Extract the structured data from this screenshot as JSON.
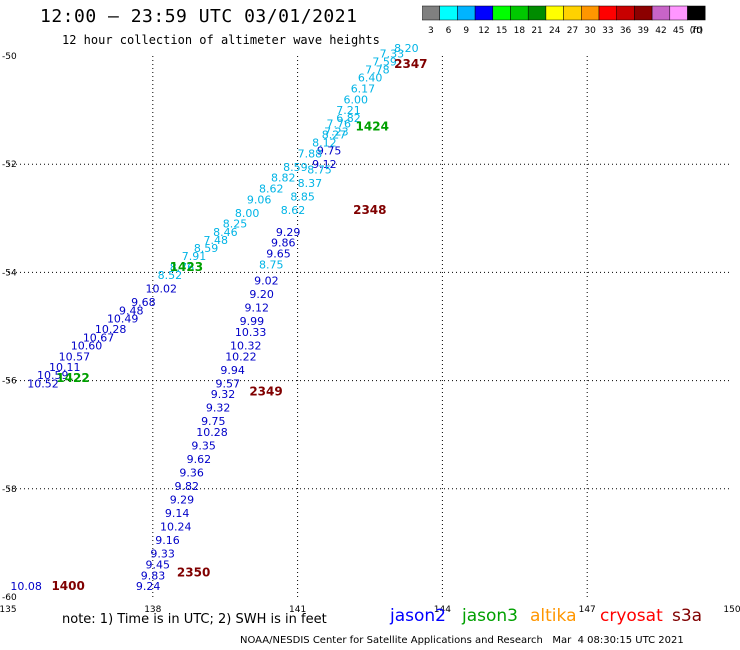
{
  "header": {
    "title": "12:00 — 23:59 UTC 03/01/2021",
    "subtitle": "12 hour collection of altimeter wave heights"
  },
  "legend": {
    "unit": "(ft)",
    "bins": [
      {
        "label": "3",
        "color": "#808080"
      },
      {
        "label": "6",
        "color": "#00ffff"
      },
      {
        "label": "9",
        "color": "#00b4ff"
      },
      {
        "label": "12",
        "color": "#0000ff"
      },
      {
        "label": "15",
        "color": "#00ff00"
      },
      {
        "label": "18",
        "color": "#00c800"
      },
      {
        "label": "21",
        "color": "#008c00"
      },
      {
        "label": "24",
        "color": "#ffff00"
      },
      {
        "label": "27",
        "color": "#ffd200"
      },
      {
        "label": "30",
        "color": "#ff9600"
      },
      {
        "label": "33",
        "color": "#ff0000"
      },
      {
        "label": "36",
        "color": "#c80000"
      },
      {
        "label": "39",
        "color": "#8c0000"
      },
      {
        "label": "42",
        "color": "#c864c8"
      },
      {
        "label": "45",
        "color": "#ff96ff"
      },
      {
        "label": "70",
        "color": "#000000"
      }
    ]
  },
  "map": {
    "lon_range": [
      135,
      150
    ],
    "lat_range": [
      -60,
      -50
    ],
    "lon_ticks": [
      "135",
      "138",
      "141",
      "144",
      "147",
      "150"
    ],
    "lat_ticks": [
      "-50",
      "-52",
      "-54",
      "-56",
      "-58",
      "-60"
    ],
    "colors": {
      "jason2": "#0000c8",
      "jason3": "#00a000",
      "cyan": "#00b4e6",
      "cryosat": "#800000",
      "grid": "#000000"
    }
  },
  "tracks": [
    {
      "satellite": "jason2",
      "color": "#0000c8",
      "points": [
        {
          "lon": 135.05,
          "lat": -59.8,
          "v": "10.08"
        },
        {
          "lon": 135.4,
          "lat": -56.05,
          "v": "10.52"
        },
        {
          "lon": 135.6,
          "lat": -55.9,
          "v": "10.59"
        },
        {
          "lon": 135.85,
          "lat": -55.75,
          "v": "10.11"
        },
        {
          "lon": 136.05,
          "lat": -55.55,
          "v": "10.57"
        },
        {
          "lon": 136.3,
          "lat": -55.35,
          "v": "10.60"
        },
        {
          "lon": 136.55,
          "lat": -55.2,
          "v": "10.67"
        },
        {
          "lon": 136.8,
          "lat": -55.05,
          "v": "10.28"
        },
        {
          "lon": 137.05,
          "lat": -54.85,
          "v": "10.49"
        },
        {
          "lon": 137.3,
          "lat": -54.7,
          "v": "9.48"
        },
        {
          "lon": 137.55,
          "lat": -54.55,
          "v": "9.68"
        },
        {
          "lon": 137.85,
          "lat": -54.3,
          "v": "10.02"
        },
        {
          "lon": 137.65,
          "lat": -59.8,
          "v": "9.24"
        },
        {
          "lon": 137.75,
          "lat": -59.6,
          "v": "9.83"
        },
        {
          "lon": 137.85,
          "lat": -59.4,
          "v": "9.45"
        },
        {
          "lon": 137.95,
          "lat": -59.2,
          "v": "9.33"
        },
        {
          "lon": 138.05,
          "lat": -58.95,
          "v": "9.16"
        },
        {
          "lon": 138.15,
          "lat": -58.7,
          "v": "10.24"
        },
        {
          "lon": 138.25,
          "lat": -58.45,
          "v": "9.14"
        },
        {
          "lon": 138.35,
          "lat": -58.2,
          "v": "9.29"
        },
        {
          "lon": 138.45,
          "lat": -57.95,
          "v": "9.82"
        },
        {
          "lon": 138.55,
          "lat": -57.7,
          "v": "9.36"
        },
        {
          "lon": 138.7,
          "lat": -57.45,
          "v": "9.62"
        },
        {
          "lon": 138.8,
          "lat": -57.2,
          "v": "9.35"
        },
        {
          "lon": 138.9,
          "lat": -56.95,
          "v": "10.28"
        },
        {
          "lon": 139.0,
          "lat": -56.75,
          "v": "9.75"
        },
        {
          "lon": 139.1,
          "lat": -56.5,
          "v": "9.32"
        },
        {
          "lon": 139.2,
          "lat": -56.25,
          "v": "9.32"
        },
        {
          "lon": 139.3,
          "lat": -56.05,
          "v": "9.57"
        },
        {
          "lon": 139.4,
          "lat": -55.8,
          "v": "9.94"
        },
        {
          "lon": 139.5,
          "lat": -55.55,
          "v": "10.22"
        },
        {
          "lon": 139.6,
          "lat": -55.35,
          "v": "10.32"
        },
        {
          "lon": 139.7,
          "lat": -55.1,
          "v": "10.33"
        },
        {
          "lon": 139.8,
          "lat": -54.9,
          "v": "9.99"
        },
        {
          "lon": 139.9,
          "lat": -54.65,
          "v": "9.12"
        },
        {
          "lon": 140.0,
          "lat": -54.4,
          "v": "9.20"
        },
        {
          "lon": 140.1,
          "lat": -54.15,
          "v": "9.02"
        },
        {
          "lon": 140.35,
          "lat": -53.65,
          "v": "9.65"
        },
        {
          "lon": 140.45,
          "lat": -53.45,
          "v": "9.86"
        },
        {
          "lon": 140.55,
          "lat": -53.25,
          "v": "9.29"
        },
        {
          "lon": 141.3,
          "lat": -52.0,
          "v": "9.12"
        },
        {
          "lon": 141.4,
          "lat": -51.75,
          "v": "9.75"
        }
      ]
    },
    {
      "satellite": "jason3",
      "color": "#00b4e6",
      "points": [
        {
          "lon": 140.2,
          "lat": -53.85,
          "v": "8.75"
        },
        {
          "lon": 140.65,
          "lat": -52.85,
          "v": "8.62"
        },
        {
          "lon": 140.85,
          "lat": -52.6,
          "v": "8.85"
        },
        {
          "lon": 141.0,
          "lat": -52.35,
          "v": "8.37"
        },
        {
          "lon": 141.2,
          "lat": -52.1,
          "v": "8.75"
        },
        {
          "lon": 141.5,
          "lat": -51.45,
          "v": "8.27"
        },
        {
          "lon": 141.6,
          "lat": -51.25,
          "v": "7.76"
        },
        {
          "lon": 141.8,
          "lat": -51.0,
          "v": "7.21"
        },
        {
          "lon": 141.95,
          "lat": -50.8,
          "v": "6.00"
        },
        {
          "lon": 142.1,
          "lat": -50.6,
          "v": "6.17"
        },
        {
          "lon": 142.25,
          "lat": -50.4,
          "v": "6.40"
        },
        {
          "lon": 142.4,
          "lat": -50.25,
          "v": "7.78"
        },
        {
          "lon": 142.55,
          "lat": -50.1,
          "v": "7.59"
        },
        {
          "lon": 142.7,
          "lat": -49.95,
          "v": "7.33"
        },
        {
          "lon": 143.0,
          "lat": -49.85,
          "v": "8.20"
        },
        {
          "lon": 138.1,
          "lat": -54.05,
          "v": "8.52"
        },
        {
          "lon": 138.35,
          "lat": -53.9,
          "v": "8.76"
        },
        {
          "lon": 138.6,
          "lat": -53.7,
          "v": "7.91"
        },
        {
          "lon": 138.85,
          "lat": -53.55,
          "v": "8.59"
        },
        {
          "lon": 139.05,
          "lat": -53.4,
          "v": "7.48"
        },
        {
          "lon": 139.25,
          "lat": -53.25,
          "v": "8.46"
        },
        {
          "lon": 139.45,
          "lat": -53.1,
          "v": "8.25"
        },
        {
          "lon": 139.7,
          "lat": -52.9,
          "v": "8.00"
        },
        {
          "lon": 139.95,
          "lat": -52.65,
          "v": "9.06"
        },
        {
          "lon": 140.2,
          "lat": -52.45,
          "v": "8.62"
        },
        {
          "lon": 140.45,
          "lat": -52.25,
          "v": "8.82"
        },
        {
          "lon": 140.7,
          "lat": -52.05,
          "v": "8.59"
        },
        {
          "lon": 141.0,
          "lat": -51.8,
          "v": "7.88"
        },
        {
          "lon": 141.3,
          "lat": -51.6,
          "v": "8.12"
        },
        {
          "lon": 141.55,
          "lat": -51.4,
          "v": "7.23"
        },
        {
          "lon": 141.8,
          "lat": -51.15,
          "v": "6.82"
        }
      ]
    }
  ],
  "time_labels": [
    {
      "text": "1422",
      "lon": 136.0,
      "lat": -55.95,
      "color": "#00a000"
    },
    {
      "text": "1423",
      "lon": 138.35,
      "lat": -53.9,
      "color": "#00a000"
    },
    {
      "text": "1424",
      "lon": 142.2,
      "lat": -51.3,
      "color": "#00a000"
    },
    {
      "text": "1400",
      "lon": 135.9,
      "lat": -59.8,
      "color": "#800000"
    },
    {
      "text": "2350",
      "lon": 138.5,
      "lat": -59.55,
      "color": "#800000"
    },
    {
      "text": "2349",
      "lon": 140.0,
      "lat": -56.2,
      "color": "#800000"
    },
    {
      "text": "2348",
      "lon": 142.15,
      "lat": -52.85,
      "color": "#800000"
    },
    {
      "text": "2347",
      "lon": 143.0,
      "lat": -50.15,
      "color": "#800000"
    }
  ],
  "footer": {
    "note": "note: 1) Time is in UTC; 2) SWH is in feet",
    "satellites": [
      {
        "name": "jason2",
        "color": "#0000ff"
      },
      {
        "name": "jason3",
        "color": "#00a000"
      },
      {
        "name": "altika",
        "color": "#ff9600"
      },
      {
        "name": "cryosat",
        "color": "#ff0000"
      },
      {
        "name": "s3a",
        "color": "#800000"
      }
    ],
    "credit": "NOAA/NESDIS Center for Satellite Applications and Research   Mar  4 08:30:15 UTC 2021"
  }
}
